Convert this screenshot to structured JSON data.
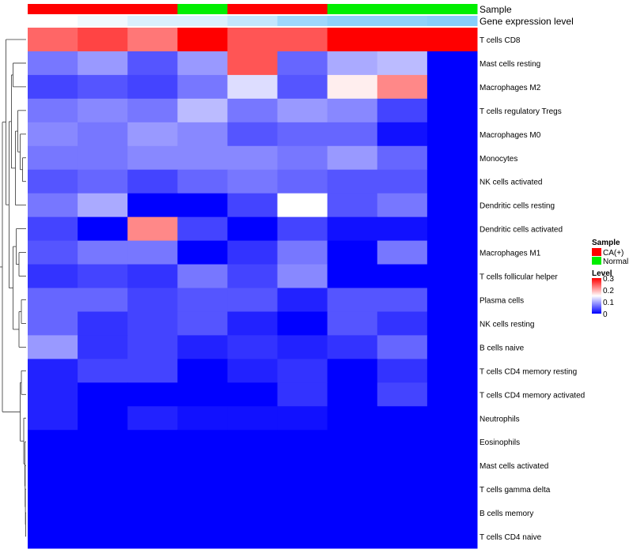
{
  "chart_data": {
    "type": "heatmap",
    "columns": [
      "",
      "",
      "",
      "",
      "",
      "",
      "",
      "",
      ""
    ],
    "annotation_tracks": [
      {
        "name": "Sample",
        "values": [
          "CA(+)",
          "CA(+)",
          "CA(+)",
          "Normal",
          "CA(+)",
          "CA(+)",
          "Normal",
          "Normal",
          "Normal"
        ]
      },
      {
        "name": "Gene expression level",
        "values": [
          0.0,
          0.02,
          0.05,
          0.05,
          0.08,
          0.13,
          0.15,
          0.15,
          0.16
        ]
      }
    ],
    "rows": [
      "T cells CD8",
      "Mast cells resting",
      "Macrophages M2",
      "T cells regulatory  Tregs",
      "Macrophages M0",
      "Monocytes",
      "NK cells activated",
      "Dendritic cells resting",
      "Dendritic cells activated",
      "Macrophages M1",
      "T cells follicular helper",
      "Plasma cells",
      "NK cells resting",
      "B cells naive",
      "T cells CD4 memory resting",
      "T cells CD4 memory activated",
      "Neutrophils",
      "Eosinophils",
      "Mast cells activated",
      "T cells gamma delta",
      "B cells memory",
      "T cells CD4 naive"
    ],
    "values": [
      [
        0.24,
        0.26,
        0.23,
        0.3,
        0.25,
        0.25,
        0.3,
        0.3,
        0.3
      ],
      [
        0.07,
        0.09,
        0.05,
        0.09,
        0.25,
        0.06,
        0.1,
        0.11,
        0.0
      ],
      [
        0.04,
        0.05,
        0.04,
        0.07,
        0.13,
        0.05,
        0.16,
        0.22,
        0.0
      ],
      [
        0.07,
        0.08,
        0.07,
        0.11,
        0.07,
        0.09,
        0.08,
        0.04,
        0.0
      ],
      [
        0.08,
        0.07,
        0.09,
        0.08,
        0.05,
        0.06,
        0.06,
        0.01,
        0.0
      ],
      [
        0.07,
        0.07,
        0.08,
        0.08,
        0.08,
        0.07,
        0.09,
        0.06,
        0.0
      ],
      [
        0.05,
        0.06,
        0.04,
        0.06,
        0.07,
        0.06,
        0.05,
        0.05,
        0.0
      ],
      [
        0.07,
        0.1,
        0.0,
        0.0,
        0.04,
        0.15,
        0.05,
        0.07,
        0.0
      ],
      [
        0.04,
        0.0,
        0.22,
        0.04,
        0.0,
        0.04,
        0.01,
        0.01,
        0.0
      ],
      [
        0.05,
        0.07,
        0.07,
        0.0,
        0.03,
        0.07,
        0.0,
        0.07,
        0.0
      ],
      [
        0.03,
        0.04,
        0.03,
        0.07,
        0.04,
        0.08,
        0.0,
        0.0,
        0.0
      ],
      [
        0.06,
        0.06,
        0.04,
        0.05,
        0.05,
        0.02,
        0.05,
        0.05,
        0.0
      ],
      [
        0.06,
        0.03,
        0.04,
        0.05,
        0.02,
        0.0,
        0.05,
        0.03,
        0.0
      ],
      [
        0.09,
        0.03,
        0.04,
        0.02,
        0.03,
        0.02,
        0.03,
        0.06,
        0.0
      ],
      [
        0.02,
        0.04,
        0.04,
        0.0,
        0.02,
        0.03,
        0.0,
        0.03,
        0.0
      ],
      [
        0.02,
        0.0,
        0.0,
        0.0,
        0.0,
        0.03,
        0.0,
        0.04,
        0.0
      ],
      [
        0.02,
        0.0,
        0.02,
        0.01,
        0.01,
        0.01,
        0.0,
        0.0,
        0.0
      ],
      [
        0.0,
        0.0,
        0.0,
        0.0,
        0.0,
        0.0,
        0.0,
        0.0,
        0.0
      ],
      [
        0.0,
        0.0,
        0.0,
        0.0,
        0.0,
        0.0,
        0.0,
        0.0,
        0.0
      ],
      [
        0.0,
        0.0,
        0.0,
        0.0,
        0.0,
        0.0,
        0.0,
        0.0,
        0.0
      ],
      [
        0.0,
        0.0,
        0.0,
        0.0,
        0.0,
        0.0,
        0.0,
        0.0,
        0.0
      ],
      [
        0.0,
        0.0,
        0.0,
        0.0,
        0.0,
        0.0,
        0.0,
        0.0,
        0.0
      ]
    ],
    "color_scale": {
      "name": "Level",
      "min": 0,
      "max": 0.3,
      "ticks": [
        0.3,
        0.2,
        0.1,
        0
      ],
      "colors": [
        "#0000ff",
        "#ffffff",
        "#ff0000"
      ]
    },
    "sample_legend": {
      "title": "Sample",
      "entries": [
        {
          "label": "CA(+)",
          "color": "#ff0000"
        },
        {
          "label": "Normal",
          "color": "#00ee00"
        }
      ]
    },
    "row_dendrogram": true,
    "legend_position": "right"
  }
}
